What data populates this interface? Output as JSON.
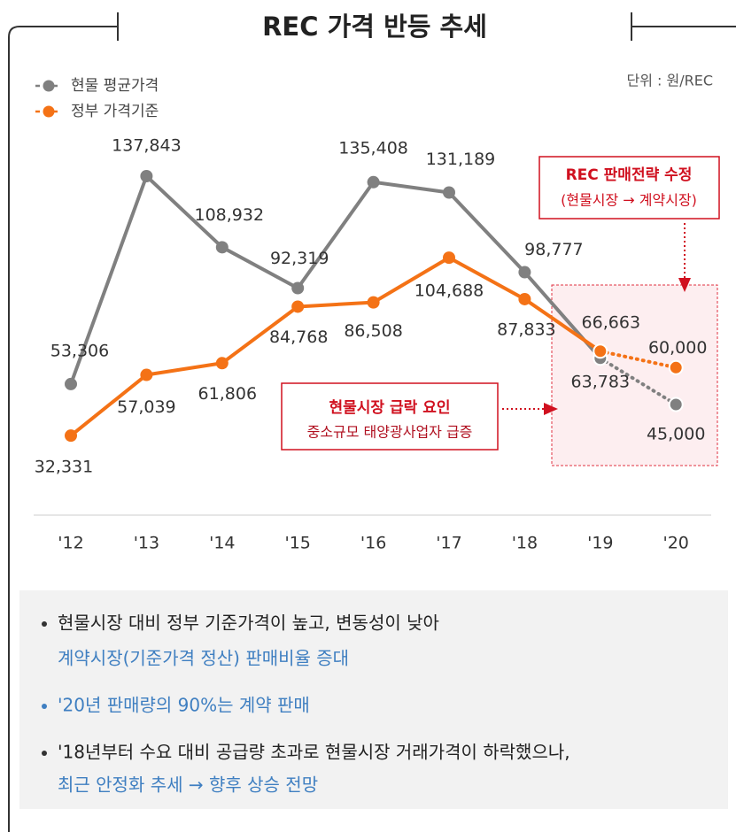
{
  "chart_data": {
    "type": "line",
    "title": "REC 가격 반등 추세",
    "unit_note": "단위 : 원/REC",
    "categories": [
      "'12",
      "'13",
      "'14",
      "'15",
      "'16",
      "'17",
      "'18",
      "'19",
      "'20"
    ],
    "series": [
      {
        "name": "현물 평균가격",
        "color": "#808080",
        "values": [
          53306,
          137843,
          108932,
          92319,
          135408,
          131189,
          98777,
          63783,
          45000
        ],
        "value_labels": [
          "53,306",
          "137,843",
          "108,932",
          "92,319",
          "135,408",
          "131,189",
          "98,777",
          "63,783",
          "45,000"
        ]
      },
      {
        "name": "정부 가격기준",
        "color": "#f47216",
        "values": [
          32331,
          57039,
          61806,
          84768,
          86508,
          104688,
          87833,
          66663,
          60000
        ],
        "value_labels": [
          "32,331",
          "57,039",
          "61,806",
          "84,768",
          "86,508",
          "104,688",
          "87,833",
          "66,663",
          "60,000"
        ]
      }
    ],
    "annotations": [
      {
        "title": "REC 판매전략 수정",
        "text": "(현물시장 → 계약시장)"
      },
      {
        "title": "현물시장 급락 요인",
        "text": "중소규모 태양광사업자 급증"
      }
    ]
  },
  "notes": [
    {
      "lines": [
        "현물시장 대비 정부 기준가격이 높고, 변동성이 낮아",
        "계약시장(기준가격 정산) 판매비율 증대"
      ]
    },
    {
      "lines": [
        "'20년 판매량의 90%는 계약 판매"
      ]
    },
    {
      "lines": [
        "'18년부터 수요 대비 공급량 초과로 현물시장 거래가격이 하락했으나,",
        "최근 안정화 추세 → 향후 상승 전망"
      ]
    }
  ]
}
